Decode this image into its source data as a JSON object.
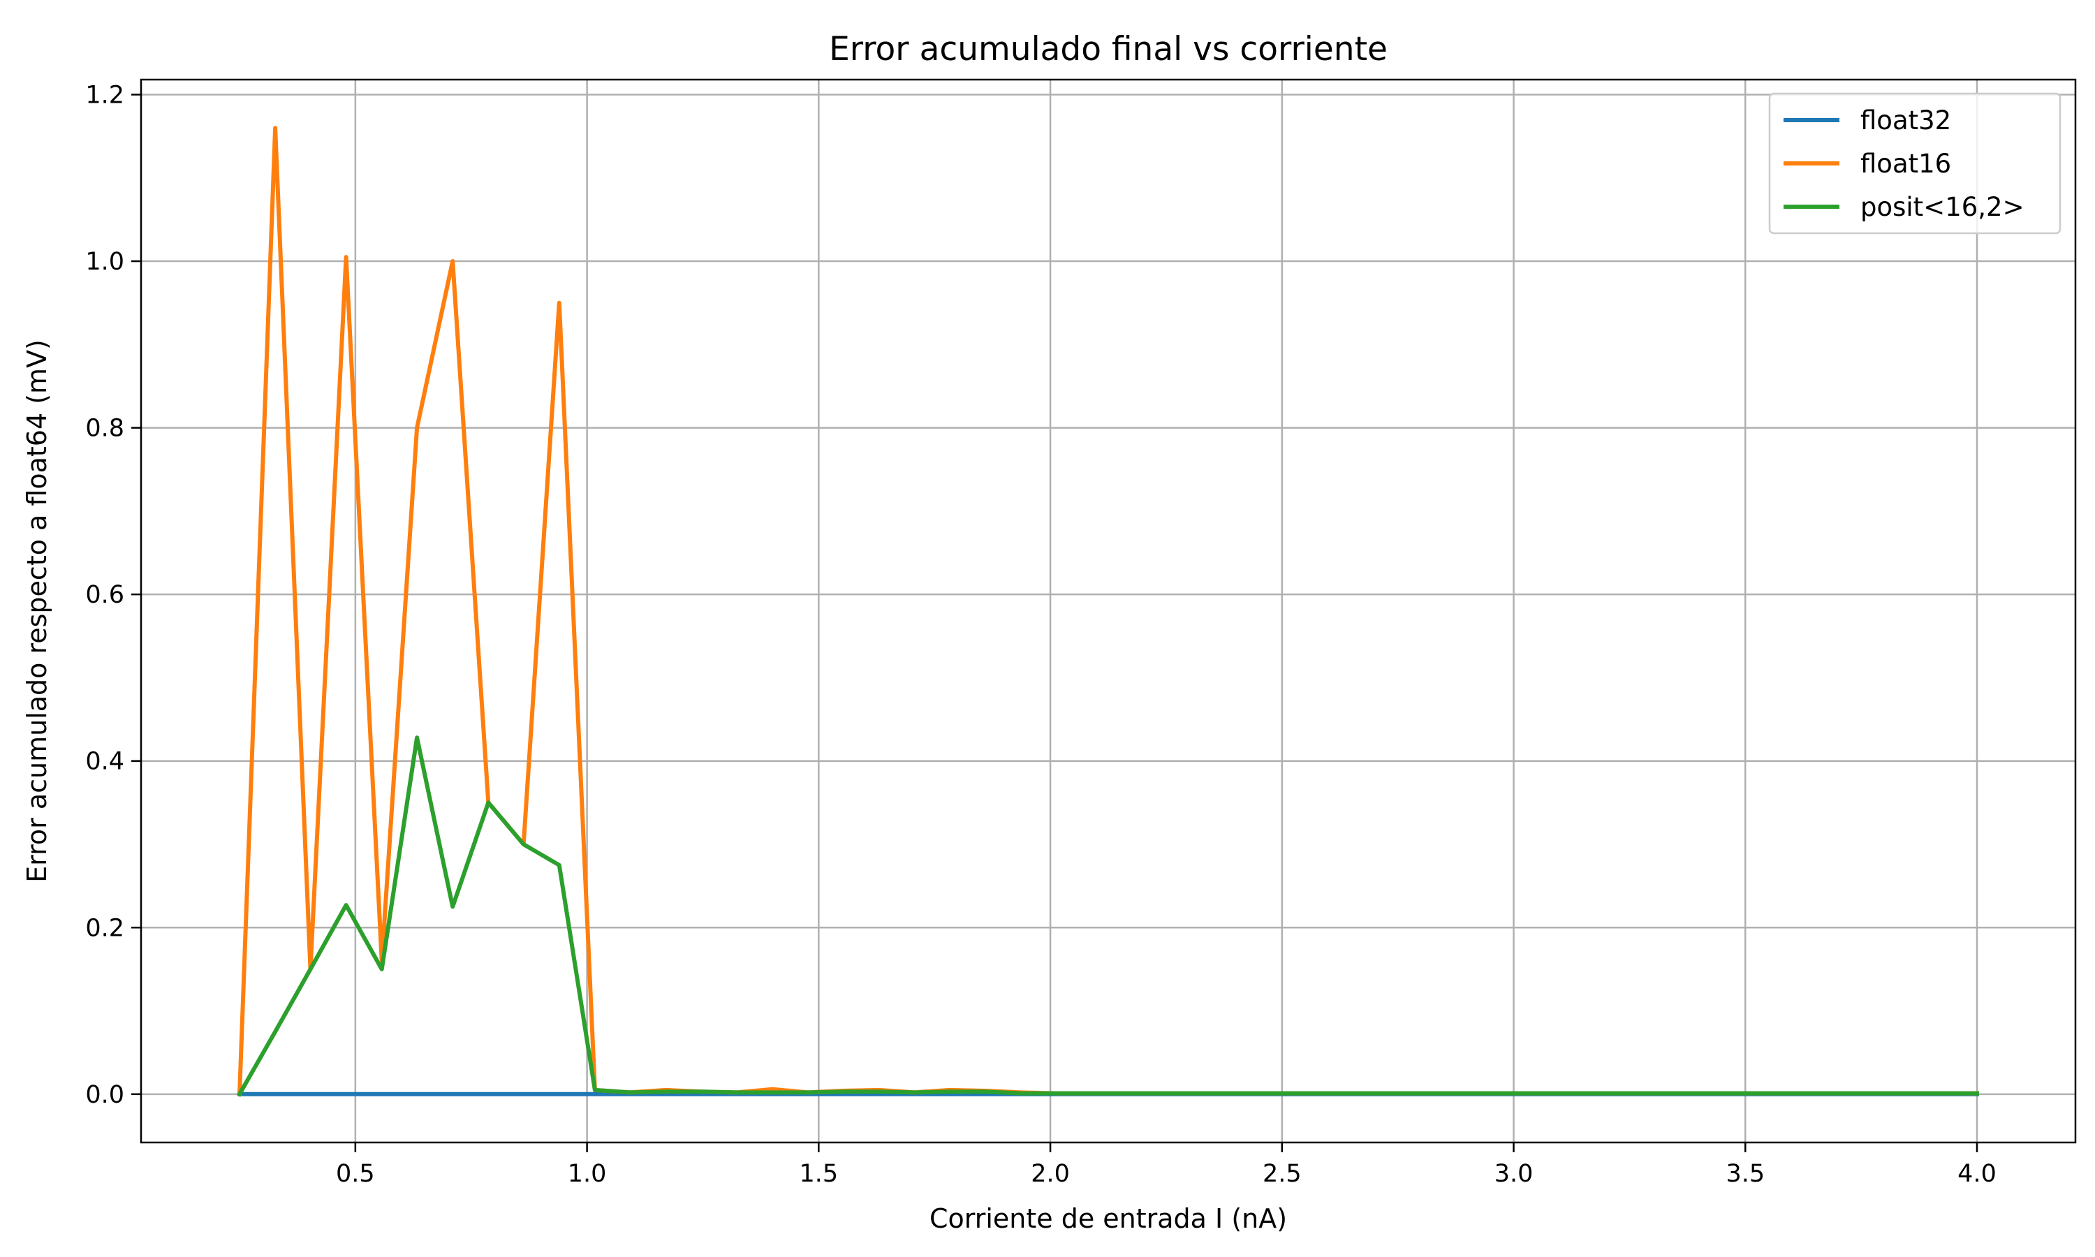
{
  "chart_data": {
    "type": "line",
    "title": "Error acumulado final vs corriente",
    "xlabel": "Corriente de entrada I (nA)",
    "ylabel": "Error acumulado respecto a float64 (mV)",
    "xlim": [
      0.0375,
      4.2125
    ],
    "ylim": [
      -0.058,
      1.218
    ],
    "xticks": [
      0.5,
      1.0,
      1.5,
      2.0,
      2.5,
      3.0,
      3.5,
      4.0
    ],
    "xtick_labels": [
      "0.5",
      "1.0",
      "1.5",
      "2.0",
      "2.5",
      "3.0",
      "3.5",
      "4.0"
    ],
    "yticks": [
      0.0,
      0.2,
      0.4,
      0.6,
      0.8,
      1.0,
      1.2
    ],
    "ytick_labels": [
      "0.0",
      "0.2",
      "0.4",
      "0.6",
      "0.8",
      "1.0",
      "1.2"
    ],
    "grid": true,
    "legend_position": "top-right",
    "x": [
      0.25,
      0.327,
      0.403,
      0.48,
      0.557,
      0.633,
      0.71,
      0.787,
      0.863,
      0.94,
      1.017,
      1.093,
      1.17,
      1.247,
      1.323,
      1.4,
      1.477,
      1.553,
      1.63,
      1.707,
      1.783,
      1.86,
      1.937,
      2.013,
      2.09,
      2.167,
      2.243,
      2.32,
      2.397,
      2.473,
      2.55,
      2.627,
      2.703,
      2.78,
      2.857,
      2.933,
      3.01,
      3.087,
      3.163,
      3.24,
      3.317,
      3.393,
      3.47,
      3.547,
      3.623,
      3.7,
      3.777,
      3.853,
      3.93,
      4.0
    ],
    "series": [
      {
        "name": "float32",
        "color": "#1f77b4",
        "values": [
          0,
          0,
          0,
          0,
          0,
          0,
          0,
          0,
          0,
          0,
          0,
          0,
          0,
          0,
          0,
          0,
          0,
          0,
          0,
          0,
          0,
          0,
          0,
          0,
          0,
          0,
          0,
          0,
          0,
          0,
          0,
          0,
          0,
          0,
          0,
          0,
          0,
          0,
          0,
          0,
          0,
          0,
          0,
          0,
          0,
          0,
          0,
          0,
          0,
          0
        ]
      },
      {
        "name": "float16",
        "color": "#ff7f0e",
        "values": [
          0.0,
          1.16,
          0.15,
          1.005,
          0.16,
          0.8,
          1.0,
          0.35,
          0.3,
          0.95,
          0.005,
          0.002,
          0.005,
          0.003,
          0.002,
          0.006,
          0.002,
          0.004,
          0.005,
          0.002,
          0.005,
          0.004,
          0.002,
          0.001,
          0.001,
          0.001,
          0.001,
          0.001,
          0.001,
          0.001,
          0.001,
          0.001,
          0.001,
          0.001,
          0.001,
          0.001,
          0.001,
          0.001,
          0.001,
          0.001,
          0.001,
          0.001,
          0.001,
          0.001,
          0.001,
          0.001,
          0.001,
          0.001,
          0.001,
          0.001
        ]
      },
      {
        "name": "posit<16,2>",
        "color": "#2ca02c",
        "values": [
          0.0,
          0.075,
          0.15,
          0.227,
          0.15,
          0.428,
          0.225,
          0.35,
          0.3,
          0.275,
          0.005,
          0.002,
          0.003,
          0.003,
          0.002,
          0.002,
          0.002,
          0.003,
          0.003,
          0.002,
          0.003,
          0.003,
          0.001,
          0.001,
          0.001,
          0.001,
          0.001,
          0.001,
          0.001,
          0.001,
          0.001,
          0.001,
          0.001,
          0.001,
          0.001,
          0.001,
          0.001,
          0.001,
          0.001,
          0.001,
          0.001,
          0.001,
          0.001,
          0.001,
          0.001,
          0.001,
          0.001,
          0.001,
          0.001,
          0.001
        ]
      }
    ]
  }
}
